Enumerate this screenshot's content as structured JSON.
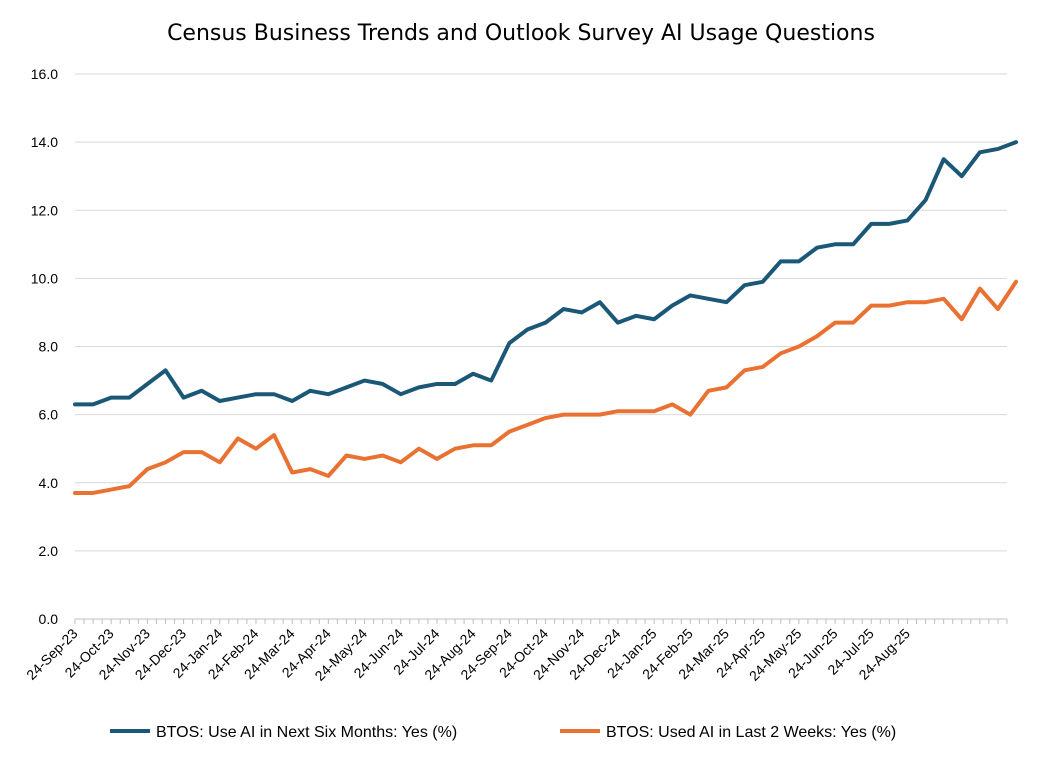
{
  "chart_data": {
    "type": "line",
    "title": "Census Business Trends and Outlook Survey AI Usage Questions",
    "xlabel": "",
    "ylabel": "",
    "ylim": [
      0,
      16
    ],
    "y_ticks": [
      "0.0",
      "2.0",
      "4.0",
      "6.0",
      "8.0",
      "10.0",
      "12.0",
      "14.0",
      "16.0"
    ],
    "grid": true,
    "legend_position": "bottom",
    "x_tick_labels": [
      "24-Sep-23",
      "24-Oct-23",
      "24-Nov-23",
      "24-Dec-23",
      "24-Jan-24",
      "24-Feb-24",
      "24-Mar-24",
      "24-Apr-24",
      "24-May-24",
      "24-Jun-24",
      "24-Jul-24",
      "24-Aug-24",
      "24-Sep-24",
      "24-Oct-24",
      "24-Nov-24",
      "24-Dec-24",
      "24-Jan-25",
      "24-Feb-25",
      "24-Mar-25",
      "24-Apr-25",
      "24-May-25",
      "24-Jun-25",
      "24-Jul-25",
      "24-Aug-25"
    ],
    "x": [
      "2023-09-24",
      "2023-10-01",
      "2023-10-08",
      "2023-10-15",
      "2023-10-22",
      "2023-10-29",
      "2023-11-05",
      "2023-11-12",
      "2023-11-19",
      "2023-11-26",
      "2023-12-03",
      "2023-12-10",
      "2023-12-17",
      "2023-12-24",
      "2023-12-31",
      "2024-01-07",
      "2024-01-14",
      "2024-01-21",
      "2024-01-28",
      "2024-02-04",
      "2024-02-11",
      "2024-02-18",
      "2024-02-25",
      "2024-03-03",
      "2024-03-10",
      "2024-03-17",
      "2024-03-24",
      "2024-03-31",
      "2024-04-07",
      "2024-04-14",
      "2024-04-21",
      "2024-04-28",
      "2024-05-05",
      "2024-05-12",
      "2024-05-19",
      "2024-05-26",
      "2024-06-02",
      "2024-06-09",
      "2024-06-16",
      "2024-06-23",
      "2024-06-30",
      "2024-07-07",
      "2024-07-14",
      "2024-07-21",
      "2024-07-28",
      "2024-08-04",
      "2024-08-11",
      "2024-08-18",
      "2024-08-25",
      "2024-09-01",
      "2024-09-08",
      "2024-09-15",
      "2024-09-22",
      "2024-09-29",
      "2024-10-06",
      "2024-10-13",
      "2024-10-20",
      "2024-10-27",
      "2024-11-03",
      "2024-11-10",
      "2024-11-17",
      "2024-11-24",
      "2024-12-01",
      "2024-12-08",
      "2024-12-15",
      "2024-12-22",
      "2024-12-29",
      "2025-01-05",
      "2025-01-12",
      "2025-01-19",
      "2025-01-26",
      "2025-02-02",
      "2025-02-09",
      "2025-02-16",
      "2025-02-23",
      "2025-03-02",
      "2025-03-09",
      "2025-03-16",
      "2025-03-23",
      "2025-03-30",
      "2025-04-06",
      "2025-04-13",
      "2025-04-20",
      "2025-04-27",
      "2025-05-04",
      "2025-05-11",
      "2025-05-18",
      "2025-05-25",
      "2025-06-01",
      "2025-06-08",
      "2025-06-15",
      "2025-06-22",
      "2025-06-29",
      "2025-07-06",
      "2025-07-13",
      "2025-07-20",
      "2025-07-27",
      "2025-08-03",
      "2025-08-10",
      "2025-08-17",
      "2025-08-24",
      "2025-08-31",
      "2025-09-07",
      "2025-09-14"
    ],
    "series": [
      {
        "name": "BTOS: Use AI in Next Six Months: Yes (%)",
        "color": "#1b5878",
        "points": [
          [
            "2023-09-24",
            6.3
          ],
          [
            "2023-10-08",
            6.3
          ],
          [
            "2023-10-22",
            6.5
          ],
          [
            "2023-11-05",
            6.5
          ],
          [
            "2023-11-19",
            6.9
          ],
          [
            "2023-12-03",
            7.3
          ],
          [
            "2023-12-17",
            6.5
          ],
          [
            "2023-12-31",
            6.7
          ],
          [
            "2024-01-14",
            6.4
          ],
          [
            "2024-01-28",
            6.5
          ],
          [
            "2024-02-11",
            6.6
          ],
          [
            "2024-02-25",
            6.6
          ],
          [
            "2024-03-10",
            6.4
          ],
          [
            "2024-03-24",
            6.7
          ],
          [
            "2024-04-07",
            6.6
          ],
          [
            "2024-04-21",
            6.8
          ],
          [
            "2024-05-05",
            7.0
          ],
          [
            "2024-05-19",
            6.9
          ],
          [
            "2024-06-02",
            6.6
          ],
          [
            "2024-06-16",
            6.8
          ],
          [
            "2024-06-30",
            6.9
          ],
          [
            "2024-07-14",
            6.9
          ],
          [
            "2024-07-28",
            7.2
          ],
          [
            "2024-08-11",
            7.0
          ],
          [
            "2024-08-25",
            8.1
          ],
          [
            "2024-09-08",
            8.5
          ],
          [
            "2024-09-22",
            8.7
          ],
          [
            "2024-10-06",
            9.1
          ],
          [
            "2024-10-20",
            9.0
          ],
          [
            "2024-11-03",
            9.3
          ],
          [
            "2024-11-17",
            8.7
          ],
          [
            "2024-12-01",
            8.9
          ],
          [
            "2024-12-15",
            8.8
          ],
          [
            "2024-12-29",
            9.2
          ],
          [
            "2025-01-12",
            9.5
          ],
          [
            "2025-01-26",
            9.4
          ],
          [
            "2025-02-09",
            9.3
          ],
          [
            "2025-02-23",
            9.8
          ],
          [
            "2025-03-09",
            9.9
          ],
          [
            "2025-03-23",
            10.5
          ],
          [
            "2025-04-06",
            10.5
          ],
          [
            "2025-04-20",
            10.9
          ],
          [
            "2025-05-04",
            11.0
          ],
          [
            "2025-05-18",
            11.0
          ],
          [
            "2025-06-01",
            11.6
          ],
          [
            "2025-06-15",
            11.6
          ],
          [
            "2025-06-29",
            11.7
          ],
          [
            "2025-07-13",
            12.3
          ],
          [
            "2025-07-27",
            13.5
          ],
          [
            "2025-08-10",
            13.0
          ],
          [
            "2025-08-24",
            13.7
          ],
          [
            "2025-09-07",
            13.8
          ],
          [
            "2025-09-21",
            14.0
          ]
        ]
      },
      {
        "name": "BTOS: Used AI in Last 2 Weeks: Yes (%)",
        "color": "#e97132",
        "points": [
          [
            "2023-09-24",
            3.7
          ],
          [
            "2023-10-08",
            3.7
          ],
          [
            "2023-10-22",
            3.8
          ],
          [
            "2023-11-05",
            3.9
          ],
          [
            "2023-11-19",
            4.4
          ],
          [
            "2023-12-03",
            4.6
          ],
          [
            "2023-12-17",
            4.9
          ],
          [
            "2023-12-31",
            4.9
          ],
          [
            "2024-01-14",
            4.6
          ],
          [
            "2024-01-28",
            5.3
          ],
          [
            "2024-02-11",
            5.0
          ],
          [
            "2024-02-25",
            5.4
          ],
          [
            "2024-03-10",
            4.3
          ],
          [
            "2024-03-24",
            4.4
          ],
          [
            "2024-04-07",
            4.2
          ],
          [
            "2024-04-21",
            4.8
          ],
          [
            "2024-05-05",
            4.7
          ],
          [
            "2024-05-19",
            4.8
          ],
          [
            "2024-06-02",
            4.6
          ],
          [
            "2024-06-16",
            5.0
          ],
          [
            "2024-06-30",
            4.7
          ],
          [
            "2024-07-14",
            5.0
          ],
          [
            "2024-07-28",
            5.1
          ],
          [
            "2024-08-11",
            5.1
          ],
          [
            "2024-08-25",
            5.5
          ],
          [
            "2024-09-08",
            5.7
          ],
          [
            "2024-09-22",
            5.9
          ],
          [
            "2024-10-06",
            6.0
          ],
          [
            "2024-10-20",
            6.0
          ],
          [
            "2024-11-03",
            6.0
          ],
          [
            "2024-11-17",
            6.1
          ],
          [
            "2024-12-01",
            6.1
          ],
          [
            "2024-12-15",
            6.1
          ],
          [
            "2024-12-29",
            6.3
          ],
          [
            "2025-01-12",
            6.0
          ],
          [
            "2025-01-26",
            6.7
          ],
          [
            "2025-02-09",
            6.8
          ],
          [
            "2025-02-23",
            7.3
          ],
          [
            "2025-03-09",
            7.4
          ],
          [
            "2025-03-23",
            7.8
          ],
          [
            "2025-04-06",
            8.0
          ],
          [
            "2025-04-20",
            8.3
          ],
          [
            "2025-05-04",
            8.7
          ],
          [
            "2025-05-18",
            8.7
          ],
          [
            "2025-06-01",
            9.2
          ],
          [
            "2025-06-15",
            9.2
          ],
          [
            "2025-06-29",
            9.3
          ],
          [
            "2025-07-13",
            9.3
          ],
          [
            "2025-07-27",
            9.4
          ],
          [
            "2025-08-10",
            8.8
          ],
          [
            "2025-08-24",
            9.7
          ],
          [
            "2025-09-07",
            9.1
          ],
          [
            "2025-09-21",
            9.9
          ]
        ]
      }
    ]
  }
}
